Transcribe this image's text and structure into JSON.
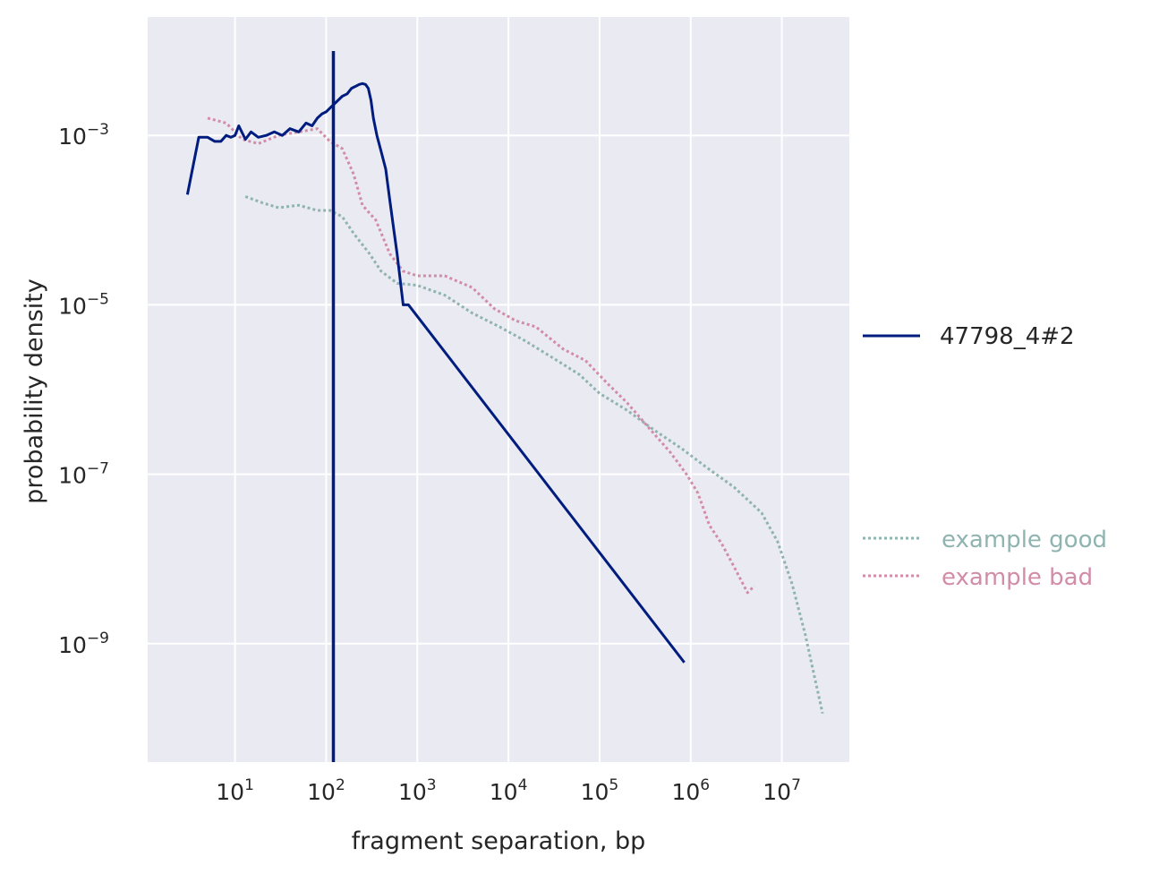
{
  "chart_data": {
    "type": "line",
    "xlabel": "fragment separation, bp",
    "ylabel": "probability density",
    "x_scale": "log",
    "y_scale": "log",
    "xlim": [
      1.1,
      55000000
    ],
    "ylim": [
      4e-11,
      0.025
    ],
    "grid": true,
    "x_ticks": [
      {
        "base": "10",
        "exp": "1",
        "value": 10
      },
      {
        "base": "10",
        "exp": "2",
        "value": 100
      },
      {
        "base": "10",
        "exp": "3",
        "value": 1000
      },
      {
        "base": "10",
        "exp": "4",
        "value": 10000
      },
      {
        "base": "10",
        "exp": "5",
        "value": 100000
      },
      {
        "base": "10",
        "exp": "6",
        "value": 1000000
      },
      {
        "base": "10",
        "exp": "7",
        "value": 10000000
      }
    ],
    "y_ticks": [
      {
        "base": "10",
        "exp": "−3",
        "value": 0.001
      },
      {
        "base": "10",
        "exp": "−5",
        "value": 1e-05
      },
      {
        "base": "10",
        "exp": "−7",
        "value": 1e-07
      },
      {
        "base": "10",
        "exp": "−9",
        "value": 1e-09
      }
    ],
    "legend": {
      "placement": "right",
      "primary": {
        "label": "47798_4#2",
        "color": "#001c7f"
      },
      "references": [
        {
          "label": "example good",
          "color": "#8fb4b0"
        },
        {
          "label": "example bad",
          "color": "#d28ca8"
        }
      ]
    },
    "vline": {
      "x": 120,
      "color": "#001c7f"
    },
    "series": [
      {
        "name": "47798_4#2",
        "color": "#001c7f",
        "style": "solid",
        "points": [
          [
            3,
            0.0002
          ],
          [
            4,
            0.00095
          ],
          [
            5,
            0.00095
          ],
          [
            6,
            0.00085
          ],
          [
            7,
            0.00085
          ],
          [
            8,
            0.001
          ],
          [
            9,
            0.00095
          ],
          [
            10,
            0.001
          ],
          [
            11,
            0.0013
          ],
          [
            13,
            0.0009
          ],
          [
            15,
            0.0011
          ],
          [
            18,
            0.00095
          ],
          [
            22,
            0.001
          ],
          [
            27,
            0.0011
          ],
          [
            33,
            0.001
          ],
          [
            40,
            0.0012
          ],
          [
            50,
            0.0011
          ],
          [
            60,
            0.0014
          ],
          [
            70,
            0.0013
          ],
          [
            80,
            0.0016
          ],
          [
            90,
            0.0018
          ],
          [
            100,
            0.0019
          ],
          [
            115,
            0.0022
          ],
          [
            130,
            0.0025
          ],
          [
            150,
            0.0029
          ],
          [
            170,
            0.0031
          ],
          [
            190,
            0.0036
          ],
          [
            210,
            0.0038
          ],
          [
            230,
            0.004
          ],
          [
            250,
            0.0041
          ],
          [
            270,
            0.004
          ],
          [
            290,
            0.0036
          ],
          [
            310,
            0.0026
          ],
          [
            330,
            0.0016
          ],
          [
            360,
            0.001
          ],
          [
            400,
            0.00065
          ],
          [
            450,
            0.0004
          ],
          [
            500,
            0.00017
          ],
          [
            550,
            8e-05
          ],
          [
            600,
            4e-05
          ],
          [
            700,
            1e-05
          ],
          [
            800,
            1e-05
          ],
          [
            850000,
            6e-10
          ]
        ]
      },
      {
        "name": "example good",
        "color": "#8fb4b0",
        "style": "dotted",
        "points": [
          [
            13,
            0.00019
          ],
          [
            20,
            0.00016
          ],
          [
            30,
            0.00014
          ],
          [
            50,
            0.00015
          ],
          [
            80,
            0.00013
          ],
          [
            110,
            0.00013
          ],
          [
            150,
            0.00011
          ],
          [
            200,
            7e-05
          ],
          [
            300,
            4e-05
          ],
          [
            400,
            2.5e-05
          ],
          [
            600,
            1.8e-05
          ],
          [
            1000,
            1.7e-05
          ],
          [
            2000,
            1.3e-05
          ],
          [
            4000,
            8e-06
          ],
          [
            8000,
            5.5e-06
          ],
          [
            15000,
            3.8e-06
          ],
          [
            30000,
            2.4e-06
          ],
          [
            60000,
            1.5e-06
          ],
          [
            100000,
            9e-07
          ],
          [
            200000,
            5.7e-07
          ],
          [
            400000,
            3.3e-07
          ],
          [
            800000,
            2e-07
          ],
          [
            1500000,
            1.2e-07
          ],
          [
            3000000,
            7e-08
          ],
          [
            6000000,
            3.5e-08
          ],
          [
            9000000,
            1.6e-08
          ],
          [
            13000000,
            5e-09
          ],
          [
            18000000,
            1.3e-09
          ],
          [
            28000000,
            1.5e-10
          ]
        ]
      },
      {
        "name": "example bad",
        "color": "#d28ca8",
        "style": "dotted",
        "points": [
          [
            5,
            0.0016
          ],
          [
            8,
            0.0014
          ],
          [
            12,
            0.0009
          ],
          [
            18,
            0.0008
          ],
          [
            30,
            0.001
          ],
          [
            50,
            0.0011
          ],
          [
            80,
            0.0012
          ],
          [
            110,
            0.00085
          ],
          [
            150,
            0.0007
          ],
          [
            200,
            0.00035
          ],
          [
            250,
            0.00015
          ],
          [
            350,
            0.0001
          ],
          [
            500,
            4e-05
          ],
          [
            700,
            2.5e-05
          ],
          [
            1000,
            2.2e-05
          ],
          [
            2000,
            2.2e-05
          ],
          [
            4000,
            1.6e-05
          ],
          [
            7000,
            9e-06
          ],
          [
            12000,
            6.5e-06
          ],
          [
            20000,
            5.5e-06
          ],
          [
            40000,
            3e-06
          ],
          [
            70000,
            2.2e-06
          ],
          [
            120000,
            1.2e-06
          ],
          [
            200000,
            7e-07
          ],
          [
            350000,
            3.5e-07
          ],
          [
            600000,
            1.8e-07
          ],
          [
            900000,
            1e-07
          ],
          [
            1200000,
            6e-08
          ],
          [
            1600000,
            2.5e-08
          ],
          [
            2200000,
            1.5e-08
          ],
          [
            3000000,
            8e-09
          ],
          [
            4200000,
            4e-09
          ],
          [
            5000000,
            4.8e-09
          ]
        ]
      }
    ]
  }
}
